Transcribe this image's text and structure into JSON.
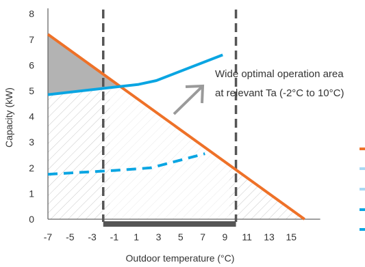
{
  "chart_data": {
    "type": "line",
    "xlabel": "Outdoor temperature (°C)",
    "ylabel": "Capacity (kW)",
    "xlim": [
      -7,
      17
    ],
    "ylim": [
      0,
      8
    ],
    "x_ticks": [
      "-7",
      "-5",
      "-3",
      "-1",
      "1",
      "3",
      "5",
      "7",
      "9",
      "11",
      "13",
      "15"
    ],
    "y_ticks": [
      "0",
      "1",
      "2",
      "3",
      "4",
      "5",
      "6",
      "7",
      "8"
    ],
    "annotation": [
      "Wide optimal operation area",
      "at relevant Ta (-2°C to 10°C)"
    ],
    "relevant_range": [
      -2,
      10
    ],
    "series": [
      {
        "style": "solid",
        "color": "#ee7128",
        "x": [
          -7,
          16.2
        ],
        "y": [
          7.2,
          0
        ]
      },
      {
        "style": "solid",
        "color": "#0aa5e2",
        "x": [
          -7,
          1.2,
          2.8,
          8.8
        ],
        "y": [
          4.85,
          5.25,
          5.4,
          6.4
        ]
      },
      {
        "style": "dashed",
        "color": "#0aa5e2",
        "x": [
          -7,
          -1,
          2.3,
          7.2
        ],
        "y": [
          1.75,
          1.9,
          2.0,
          2.55
        ]
      }
    ],
    "legend_markers": [
      {
        "color": "#ee7128"
      },
      {
        "color": "#a9d8f3"
      },
      {
        "color": "#a9d8f3"
      },
      {
        "color": "#0aa5e2"
      },
      {
        "color": "#0aa5e2"
      }
    ],
    "colors": {
      "axis": "#666666",
      "dashed_marker": "#555555",
      "range_bar": "#555555",
      "shade_gray": "#b3b3b3",
      "hatch": "#c8c8c8",
      "light_band": "#ffffff",
      "arrow": "#9a9a9a"
    }
  }
}
